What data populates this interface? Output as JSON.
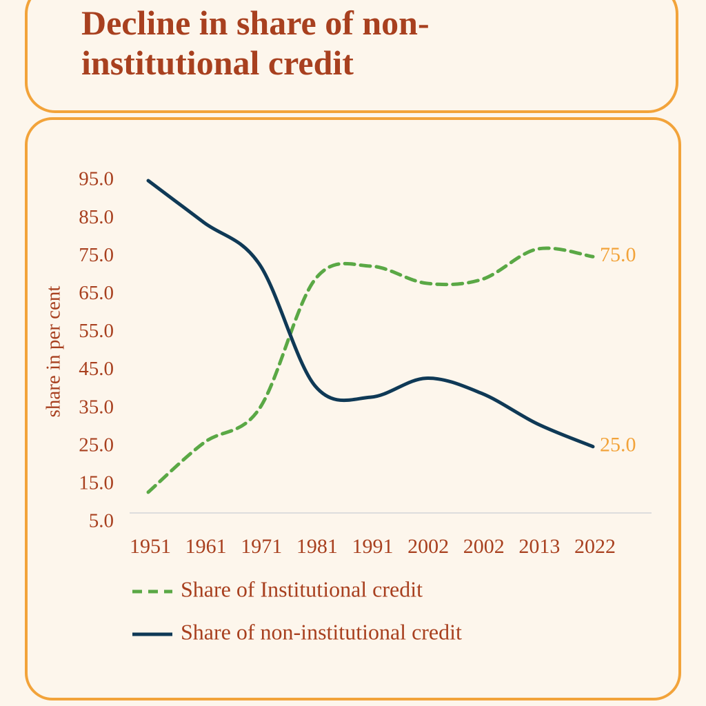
{
  "chart_data": {
    "type": "line",
    "title": "Decline in share of non-institutional credit",
    "y_label": "share in per cent",
    "categories": [
      "1951",
      "1961",
      "1971",
      "1981",
      "1991",
      "2002",
      "2002",
      "2013",
      "2022"
    ],
    "series": [
      {
        "name": "Share of Institutional credit",
        "color": "#5aa845",
        "dashed": true,
        "values": [
          13,
          26,
          35,
          69,
          72.5,
          68,
          69,
          77,
          75
        ],
        "value_labels": [
          null,
          null,
          null,
          null,
          null,
          null,
          null,
          null,
          "75.0"
        ]
      },
      {
        "name": "Share of non-institutional credit",
        "color": "#0f3956",
        "dashed": false,
        "values": [
          95,
          84,
          73,
          41,
          38,
          43,
          39,
          31,
          25
        ],
        "value_labels": [
          null,
          null,
          null,
          null,
          null,
          null,
          null,
          null,
          "25.0"
        ]
      }
    ],
    "ylim": [
      5,
      95
    ],
    "yticks": [
      {
        "value": 5,
        "label": "5.0"
      },
      {
        "value": 15,
        "label": "15.0"
      },
      {
        "value": 25,
        "label": "25.0"
      },
      {
        "value": 35,
        "label": "35.0"
      },
      {
        "value": 45,
        "label": "45.0"
      },
      {
        "value": 55,
        "label": "55.0"
      },
      {
        "value": 65,
        "label": "65.0"
      },
      {
        "value": 75,
        "label": "75.0"
      },
      {
        "value": 85,
        "label": "85.0"
      },
      {
        "value": 95,
        "label": "95.0"
      }
    ],
    "grid": false
  }
}
